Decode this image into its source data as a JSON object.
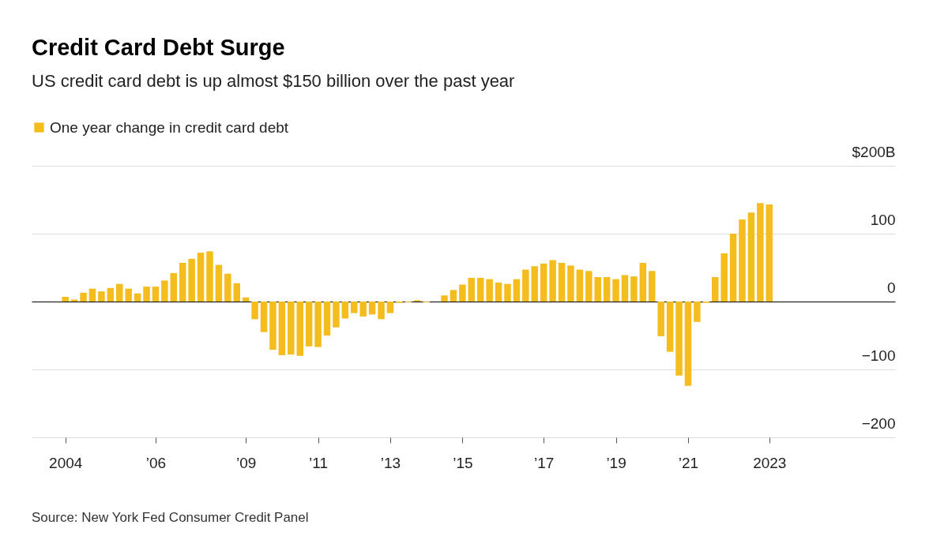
{
  "chart_data": {
    "type": "bar",
    "title": "Credit Card Debt Surge",
    "subtitle": "US credit card debt is up almost $150 billion over the past year",
    "categories": [
      "2004",
      null,
      null,
      null,
      null,
      null,
      null,
      null,
      null,
      null,
      "’06",
      null,
      null,
      null,
      null,
      null,
      null,
      null,
      null,
      null,
      "’09",
      null,
      null,
      null,
      null,
      null,
      null,
      null,
      "’11",
      null,
      null,
      null,
      null,
      null,
      null,
      null,
      "’13",
      null,
      null,
      null,
      null,
      null,
      null,
      null,
      "’15",
      null,
      null,
      null,
      null,
      null,
      null,
      null,
      null,
      "’17",
      null,
      null,
      null,
      null,
      null,
      null,
      null,
      "’19",
      null,
      null,
      null,
      null,
      null,
      null,
      null,
      "’21",
      null,
      null,
      null,
      null,
      null,
      null,
      null,
      null,
      "2023"
    ],
    "series": [
      {
        "name": "One year change in credit card debt",
        "color": "#f4bc1c",
        "values": [
          7,
          3,
          13,
          19,
          15,
          20,
          26,
          19,
          12,
          22,
          22,
          31,
          42,
          57,
          63,
          72,
          74,
          54,
          41,
          27,
          6,
          -26,
          -45,
          -71,
          -79,
          -78,
          -80,
          -66,
          -67,
          -50,
          -38,
          -25,
          -17,
          -22,
          -19,
          -26,
          -17,
          -2,
          -1,
          2,
          -1,
          0,
          9,
          17,
          25,
          35,
          35,
          33,
          28,
          26,
          33,
          47,
          52,
          56,
          61,
          57,
          53,
          47,
          45,
          36,
          36,
          33,
          39,
          37,
          57,
          45,
          -51,
          -74,
          -109,
          -124,
          -30,
          -2,
          36,
          71,
          100,
          121,
          131,
          145,
          143
        ]
      }
    ],
    "ylim": [
      -200,
      200
    ],
    "yticks": [
      -200,
      -100,
      0,
      100,
      {
        "value": 200,
        "label": "$200B"
      }
    ],
    "grid": "y",
    "legend": "top left",
    "annotations": [
      "Source: New York Fed Consumer Credit Panel"
    ]
  }
}
